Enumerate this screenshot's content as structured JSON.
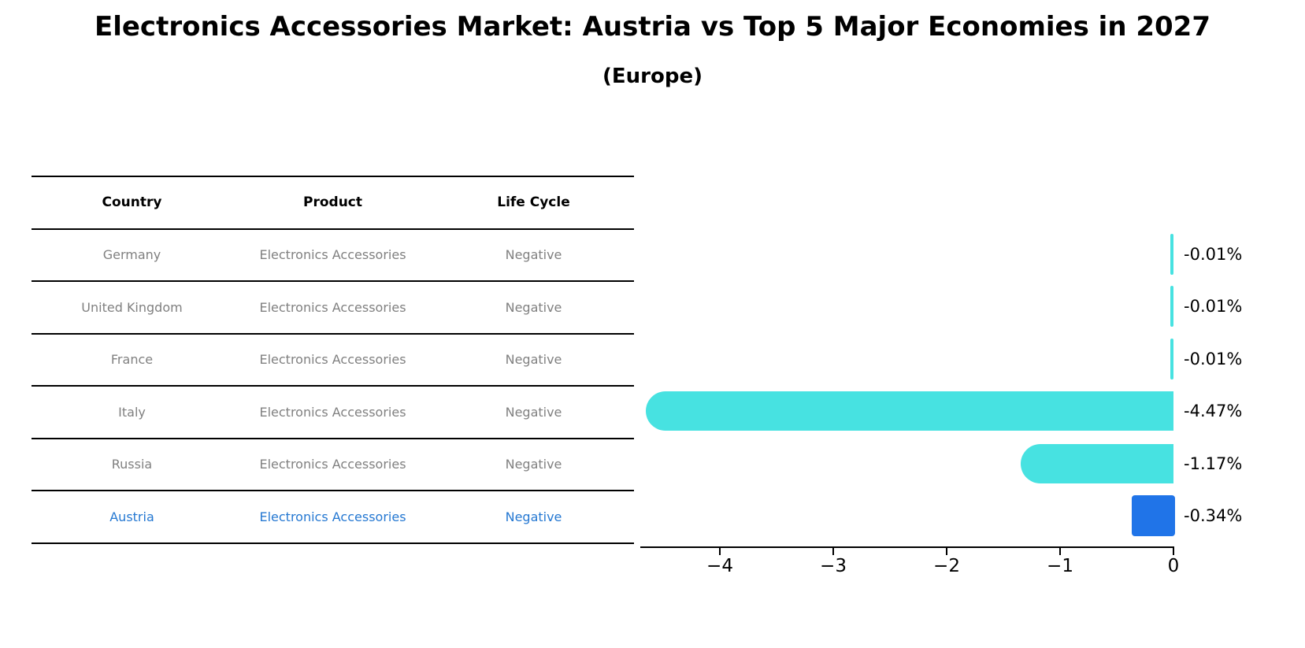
{
  "title": "Electronics Accessories Market: Austria vs Top 5 Major Economies in 2027",
  "subtitle": "(Europe)",
  "table": {
    "headers": [
      "Country",
      "Product",
      "Life Cycle"
    ],
    "rows": [
      {
        "country": "Germany",
        "product": "Electronics Accessories",
        "life_cycle": "Negative",
        "highlight": false
      },
      {
        "country": "United Kingdom",
        "product": "Electronics Accessories",
        "life_cycle": "Negative",
        "highlight": false
      },
      {
        "country": "France",
        "product": "Electronics Accessories",
        "life_cycle": "Negative",
        "highlight": false
      },
      {
        "country": "Italy",
        "product": "Electronics Accessories",
        "life_cycle": "Negative",
        "highlight": false
      },
      {
        "country": "Russia",
        "product": "Electronics Accessories",
        "life_cycle": "Negative",
        "highlight": false
      },
      {
        "country": "Austria",
        "product": "Electronics Accessories",
        "life_cycle": "Negative",
        "highlight": true
      }
    ]
  },
  "chart_data": {
    "type": "bar",
    "orientation": "horizontal",
    "categories": [
      "Germany",
      "United Kingdom",
      "France",
      "Italy",
      "Russia",
      "Austria"
    ],
    "values": [
      -0.01,
      -0.01,
      -0.01,
      -4.47,
      -1.17,
      -0.34
    ],
    "bar_labels": [
      "-0.01%",
      "-0.01%",
      "-0.01%",
      "-4.47%",
      "-1.17%",
      "-0.34%"
    ],
    "unit": "%",
    "xlim": [
      -4.7,
      0
    ],
    "xtick_values": [
      -4,
      -3,
      -2,
      -1,
      0
    ],
    "xtick_labels": [
      "−4",
      "−3",
      "−2",
      "−1",
      "0"
    ],
    "grid": false,
    "legend": null,
    "bar_color": "#47e2e1",
    "highlight_bar_color": "#2074e8",
    "highlight_index": 5,
    "highlight_style": "dotted-border"
  },
  "colors": {
    "background": "#ffffff",
    "table_line": "#000000",
    "table_header_text": "#000000",
    "table_row_text": "#808080",
    "highlight_row_text": "#2578d2",
    "axis": "#000000",
    "value_label_text": "#000000"
  }
}
